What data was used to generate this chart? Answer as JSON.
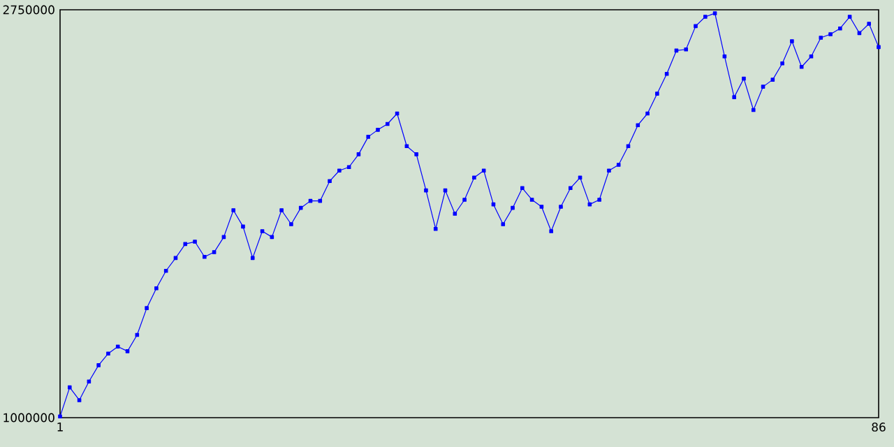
{
  "chart_data": {
    "type": "line",
    "x": [
      1,
      2,
      3,
      4,
      5,
      6,
      7,
      8,
      9,
      10,
      11,
      12,
      13,
      14,
      15,
      16,
      17,
      18,
      19,
      20,
      21,
      22,
      23,
      24,
      25,
      26,
      27,
      28,
      29,
      30,
      31,
      32,
      33,
      34,
      35,
      36,
      37,
      38,
      39,
      40,
      41,
      42,
      43,
      44,
      45,
      46,
      47,
      48,
      49,
      50,
      51,
      52,
      53,
      54,
      55,
      56,
      57,
      58,
      59,
      60,
      61,
      62,
      63,
      64,
      65,
      66,
      67,
      68,
      69,
      70,
      71,
      72,
      73,
      74,
      75,
      76,
      77,
      78,
      79,
      80,
      81,
      82,
      83,
      84,
      85,
      86
    ],
    "series": [
      {
        "color": "#0000ff",
        "values": [
          1005000,
          1130000,
          1075000,
          1155000,
          1225000,
          1275000,
          1305000,
          1285000,
          1355000,
          1470000,
          1555000,
          1630000,
          1685000,
          1745000,
          1755000,
          1690000,
          1710000,
          1775000,
          1890000,
          1820000,
          1685000,
          1800000,
          1775000,
          1890000,
          1830000,
          1900000,
          1930000,
          1930000,
          2015000,
          2060000,
          2075000,
          2130000,
          2205000,
          2235000,
          2260000,
          2305000,
          2165000,
          2130000,
          1975000,
          1810000,
          1975000,
          1875000,
          1935000,
          2030000,
          2060000,
          1915000,
          1830000,
          1900000,
          1985000,
          1935000,
          1905000,
          1800000,
          1905000,
          1985000,
          2030000,
          1915000,
          1935000,
          2060000,
          2085000,
          2165000,
          2255000,
          2305000,
          2390000,
          2475000,
          2575000,
          2580000,
          2680000,
          2720000,
          2735000,
          2550000,
          2375000,
          2455000,
          2320000,
          2420000,
          2450000,
          2520000,
          2615000,
          2505000,
          2550000,
          2630000,
          2645000,
          2670000,
          2720000,
          2650000,
          2690000,
          2590000
        ]
      }
    ],
    "xlim": [
      1,
      86
    ],
    "ylim": [
      1000000,
      2750000
    ],
    "xticks": [
      1,
      86
    ],
    "yticks": [
      1000000,
      2750000
    ],
    "marker": "square",
    "line_style": "solid"
  }
}
